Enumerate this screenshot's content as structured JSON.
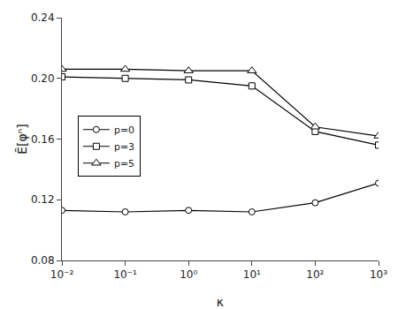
{
  "chart_data": {
    "type": "line",
    "x": [
      0.01,
      0.1,
      1.0,
      10.0,
      100.0,
      1000.0
    ],
    "series": [
      {
        "name": "p=0",
        "color": "black",
        "marker": "circle",
        "line_style": "solid",
        "values": [
          0.113,
          0.112,
          0.113,
          0.112,
          0.118,
          0.131
        ]
      },
      {
        "name": "p=3",
        "color": "black",
        "marker": "square",
        "line_style": "solid",
        "values": [
          0.201,
          0.2,
          0.199,
          0.195,
          0.165,
          0.156
        ]
      },
      {
        "name": "p=5",
        "color": "black",
        "marker": "triangle-up",
        "line_style": "solid",
        "values": [
          0.206,
          0.206,
          0.205,
          0.205,
          0.168,
          0.162
        ]
      }
    ],
    "xlabel": "κ",
    "ylabel": "Ē[φⁿ]",
    "xlim": [
      0.01,
      1000.0
    ],
    "ylim": [
      0.08,
      0.24
    ],
    "xticks": [
      {
        "value": 0.01,
        "label": "10⁻²"
      },
      {
        "value": 0.1,
        "label": "10⁻¹"
      },
      {
        "value": 1,
        "label": "10⁰"
      },
      {
        "value": 10,
        "label": "10¹"
      },
      {
        "value": 100,
        "label": "10²"
      },
      {
        "value": 1000,
        "label": "10³"
      }
    ],
    "yticks": [
      0.08,
      0.12,
      0.16,
      {
        "value": 0.2,
        "label": "0.20"
      },
      0.24
    ],
    "log": "x",
    "grid": false,
    "legend": "left"
  }
}
